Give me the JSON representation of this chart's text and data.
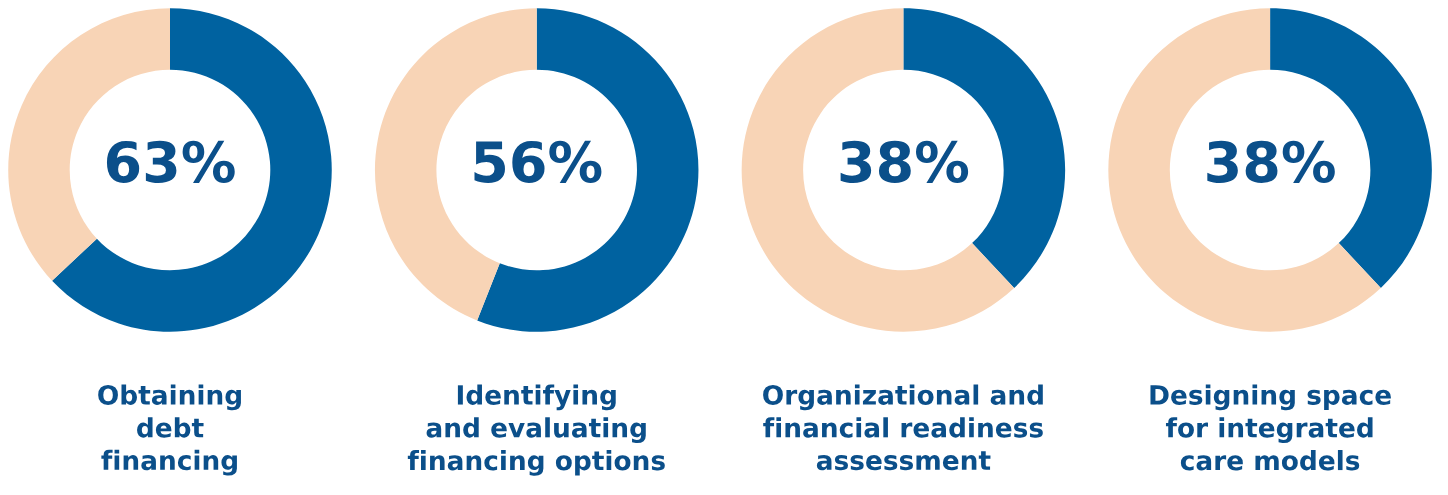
{
  "chart_data": [
    {
      "type": "donut",
      "title": "Obtaining\ndebt\nfinancing",
      "categories": [
        null,
        null
      ],
      "values": [
        63,
        37
      ],
      "colors": [
        "#0062a0",
        "#f8d4b6"
      ],
      "value_labels": [
        "63%",
        null
      ]
    },
    {
      "type": "donut",
      "title": "Identifying\nand evaluating\nfinancing options",
      "categories": [
        null,
        null
      ],
      "values": [
        56,
        44
      ],
      "colors": [
        "#0062a0",
        "#f8d4b6"
      ],
      "value_labels": [
        "56%",
        null
      ]
    },
    {
      "type": "donut",
      "title": "Organizational and\nfinancial readiness\nassessment",
      "categories": [
        null,
        null
      ],
      "values": [
        38,
        62
      ],
      "colors": [
        "#0062a0",
        "#f8d4b6"
      ],
      "value_labels": [
        "38%",
        null
      ]
    },
    {
      "type": "donut",
      "title": "Designing space\nfor integrated\ncare models",
      "categories": [
        null,
        null
      ],
      "values": [
        38,
        62
      ],
      "colors": [
        "#0062a0",
        "#f8d4b6"
      ],
      "value_labels": [
        "38%",
        null
      ]
    }
  ]
}
